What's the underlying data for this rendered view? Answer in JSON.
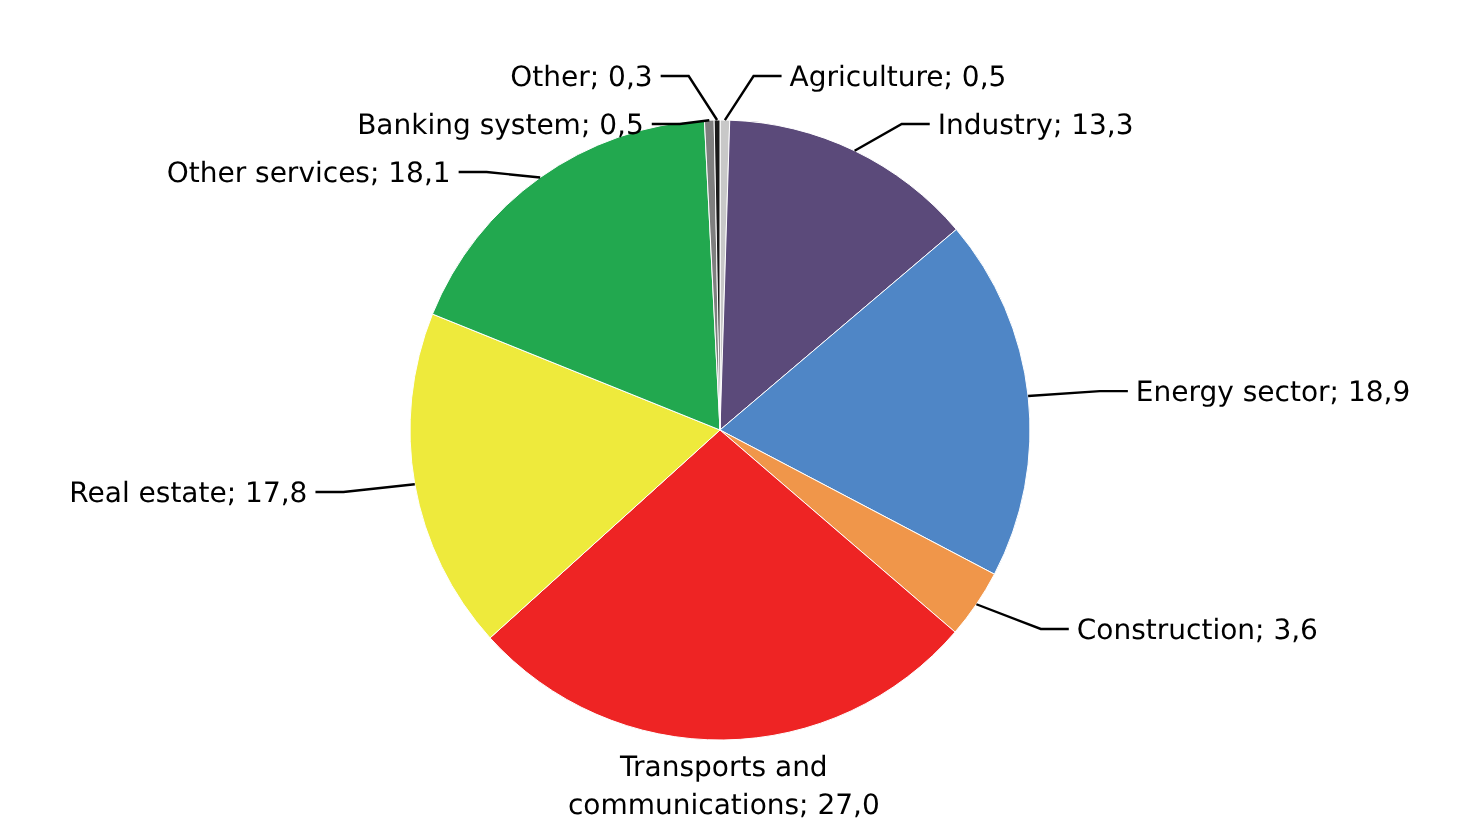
{
  "chart_data": {
    "type": "pie",
    "categories": [
      "Agriculture",
      "Industry",
      "Energy sector",
      "Construction",
      "Transports and communications",
      "Real estate",
      "Other services",
      "Banking system",
      "Other"
    ],
    "values": [
      0.5,
      13.3,
      18.9,
      3.6,
      27.0,
      17.8,
      18.1,
      0.5,
      0.3
    ],
    "value_labels": [
      "0,5",
      "13,3",
      "18,9",
      "3,6",
      "27,0",
      "17,8",
      "18,1",
      "0,5",
      "0,3"
    ],
    "colors": [
      "#c8c8c8",
      "#5b4a7a",
      "#4f86c6",
      "#f0964a",
      "#ee2424",
      "#eeea3c",
      "#22a84f",
      "#7f7f7f",
      "#1a1a1a"
    ]
  }
}
